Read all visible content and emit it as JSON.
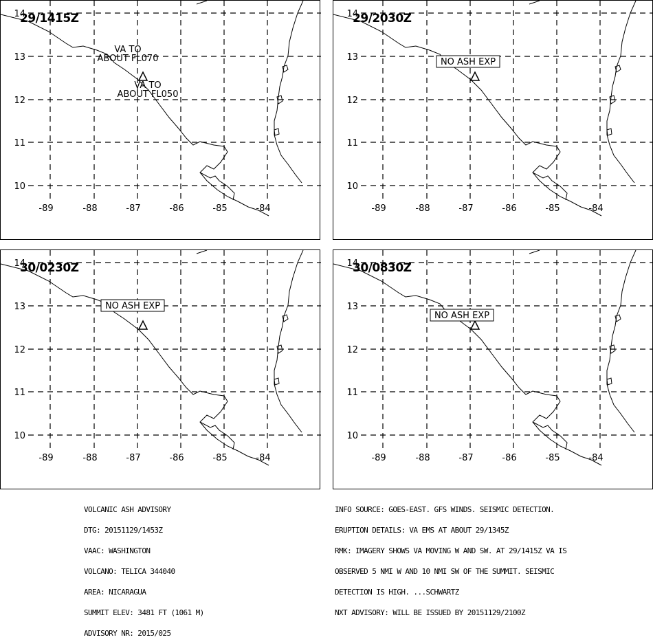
{
  "panels": [
    {
      "time": "29/1415Z",
      "annotations": [
        {
          "lines": [
            "VA TO",
            "ABOUT FL070"
          ],
          "boxed": false
        },
        {
          "lines": [
            "VA TO",
            "ABOUT FL050"
          ],
          "boxed": false
        }
      ]
    },
    {
      "time": "29/2030Z",
      "annotations": [
        {
          "lines": [
            "NO ASH EXP"
          ],
          "boxed": true
        }
      ]
    },
    {
      "time": "30/0230Z",
      "annotations": [
        {
          "lines": [
            "NO ASH EXP"
          ],
          "boxed": true
        }
      ]
    },
    {
      "time": "30/0830Z",
      "annotations": [
        {
          "lines": [
            "NO ASH EXP"
          ],
          "boxed": true
        }
      ]
    }
  ],
  "map": {
    "lon_ticks": [
      "-89",
      "-88",
      "-87",
      "-86",
      "-85",
      "-84"
    ],
    "lat_ticks": [
      "14",
      "13",
      "12",
      "11",
      "10"
    ],
    "volcano_symbol": "volcano-triangle-icon"
  },
  "advisory_left": [
    "VOLCANIC ASH ADVISORY",
    "DTG: 20151129/1453Z",
    "VAAC: WASHINGTON",
    "VOLCANO: TELICA 344040",
    "AREA: NICARAGUA",
    "SUMMIT ELEV: 3481 FT (1061 M)",
    "ADVISORY NR: 2015/025"
  ],
  "advisory_right": [
    "INFO SOURCE: GOES-EAST. GFS WINDS. SEISMIC DETECTION.",
    "ERUPTION DETAILS: VA EMS AT ABOUT 29/1345Z",
    "RMK: IMAGERY SHOWS VA MOVING W AND SW. AT 29/1415Z VA IS",
    "OBSERVED 5 NMI W AND 10 NMI SW OF THE SUMMIT. SEISMIC",
    "DETECTION IS HIGH. ...SCHWARTZ",
    "NXT ADVISORY: WILL BE ISSUED BY 20151129/2100Z"
  ]
}
